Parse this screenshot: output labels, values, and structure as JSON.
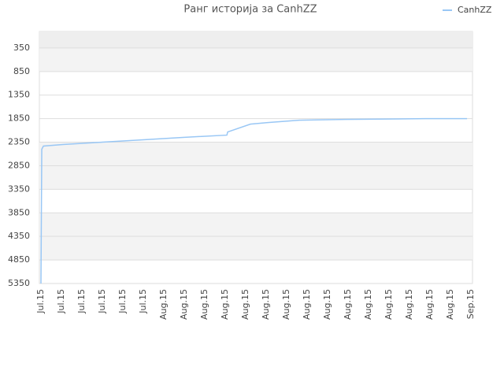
{
  "chart_data": {
    "type": "line",
    "title": "Ранг историја за CanhZZ",
    "categories": [
      "Jul.15",
      "Jul.15",
      "Jul.15",
      "Jul.15",
      "Jul.15",
      "Jul.15",
      "Aug.15",
      "Aug.15",
      "Aug.15",
      "Aug.15",
      "Aug.15",
      "Aug.15",
      "Aug.15",
      "Aug.15",
      "Aug.15",
      "Aug.15",
      "Aug.15",
      "Aug.15",
      "Aug.15",
      "Aug.15",
      "Aug.15",
      "Sep.15"
    ],
    "series": [
      {
        "name": "CanhZZ",
        "color": "#99c7f5",
        "x": [
          0,
          0.04,
          0.12,
          1.08,
          3.0,
          4.92,
          6.85,
          9.08,
          9.12,
          10.23,
          11.08,
          12.62,
          14.85,
          18.77,
          20.81
        ],
        "values": [
          5350,
          2500,
          2433,
          2400,
          2350,
          2300,
          2250,
          2200,
          2133,
          1967,
          1933,
          1883,
          1867,
          1850,
          1850
        ]
      }
    ],
    "ylim": [
      5350,
      0
    ],
    "yticks": [
      350,
      850,
      1350,
      1850,
      2350,
      2850,
      3350,
      3850,
      4350,
      4850,
      5350
    ],
    "grid": true,
    "legend": "top-right"
  }
}
